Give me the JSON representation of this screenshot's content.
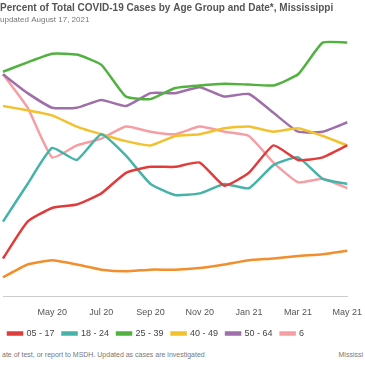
{
  "chart_data": {
    "type": "line",
    "title": "Percent of Total COVID-19 Cases by Age Group and Date*, Mississippi",
    "subtitle": "updated August 17, 2021",
    "footnote": "ate of test, or report to MSDH. Updated as cases are investigated",
    "source": "Mississi",
    "categories": [
      null,
      null,
      "May 20",
      null,
      "Jul 20",
      null,
      "Sep 20",
      null,
      "Nov 20",
      null,
      "Jan 21",
      null,
      "Mar 21",
      null,
      "May 21"
    ],
    "series": [
      {
        "name": "05 - 17",
        "color": "#e03c3c",
        "values": [
          4.4,
          8.7,
          10.3,
          10.7,
          12.0,
          14.4,
          15.1,
          15.1,
          15.6,
          12.9,
          14.4,
          17.6,
          15.9,
          16.2,
          17.6
        ]
      },
      {
        "name": "18 - 24",
        "color": "#46b3a9",
        "values": [
          8.7,
          13.1,
          17.3,
          15.9,
          18.9,
          16.4,
          13.1,
          11.8,
          12.0,
          13.1,
          12.6,
          15.3,
          16.2,
          13.7,
          13.1
        ]
      },
      {
        "name": "25 - 39",
        "color": "#52b240",
        "values": [
          26.2,
          27.3,
          28.3,
          28.2,
          27.0,
          23.3,
          23.0,
          24.3,
          24.6,
          24.8,
          24.7,
          24.6,
          25.9,
          29.6,
          29.6
        ]
      },
      {
        "name": "40 - 49",
        "color": "#f2c12e",
        "values": [
          22.2,
          21.7,
          21.1,
          19.8,
          18.9,
          18.1,
          17.6,
          18.7,
          18.9,
          19.6,
          19.8,
          19.2,
          19.6,
          18.7,
          17.6
        ]
      },
      {
        "name": "50 - 64",
        "color": "#9e6fa8",
        "values": [
          25.9,
          23.7,
          22.0,
          22.0,
          22.9,
          22.2,
          23.7,
          23.7,
          24.4,
          23.3,
          23.6,
          21.4,
          19.2,
          19.2,
          20.3
        ]
      },
      {
        "name": "6",
        "color": "#f59fa4",
        "values": [
          25.9,
          22.0,
          16.2,
          17.6,
          18.4,
          19.8,
          19.2,
          18.9,
          19.8,
          19.2,
          18.7,
          15.6,
          13.3,
          13.7,
          12.6
        ]
      },
      {
        "color": "#f28e2b",
        "values": [
          2.2,
          3.7,
          4.2,
          3.7,
          3.1,
          2.9,
          3.1,
          3.1,
          3.3,
          3.7,
          4.2,
          4.4,
          4.7,
          4.9,
          5.3
        ]
      }
    ],
    "ylim": [
      0,
      31
    ],
    "grid": false,
    "legend": "bottom",
    "tick_labels": "x"
  }
}
